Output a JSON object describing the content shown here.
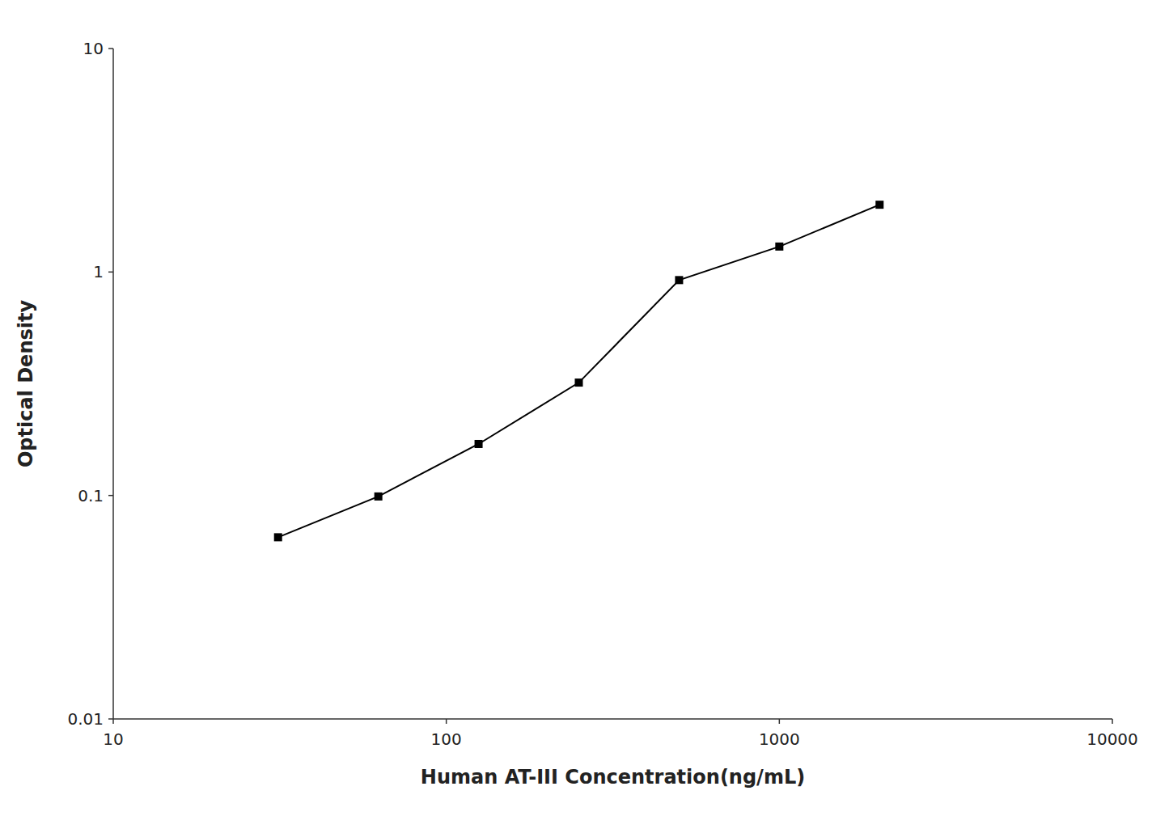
{
  "chart_data": {
    "type": "line",
    "x": [
      31.25,
      62.5,
      125,
      250,
      500,
      1000,
      2000
    ],
    "values": [
      0.065,
      0.099,
      0.17,
      0.32,
      0.92,
      1.3,
      2.0
    ],
    "xlabel": "Human AT-III Concentration(ng/mL)",
    "ylabel": "Optical Density",
    "color": "#000000",
    "marker": "square",
    "log": true,
    "xlim": [
      10,
      10000
    ],
    "ylim": [
      0.01,
      10
    ],
    "xticks": [
      10,
      100,
      1000,
      10000
    ],
    "yticks": [
      0.01,
      0.1,
      1,
      10
    ],
    "grid": false
  }
}
